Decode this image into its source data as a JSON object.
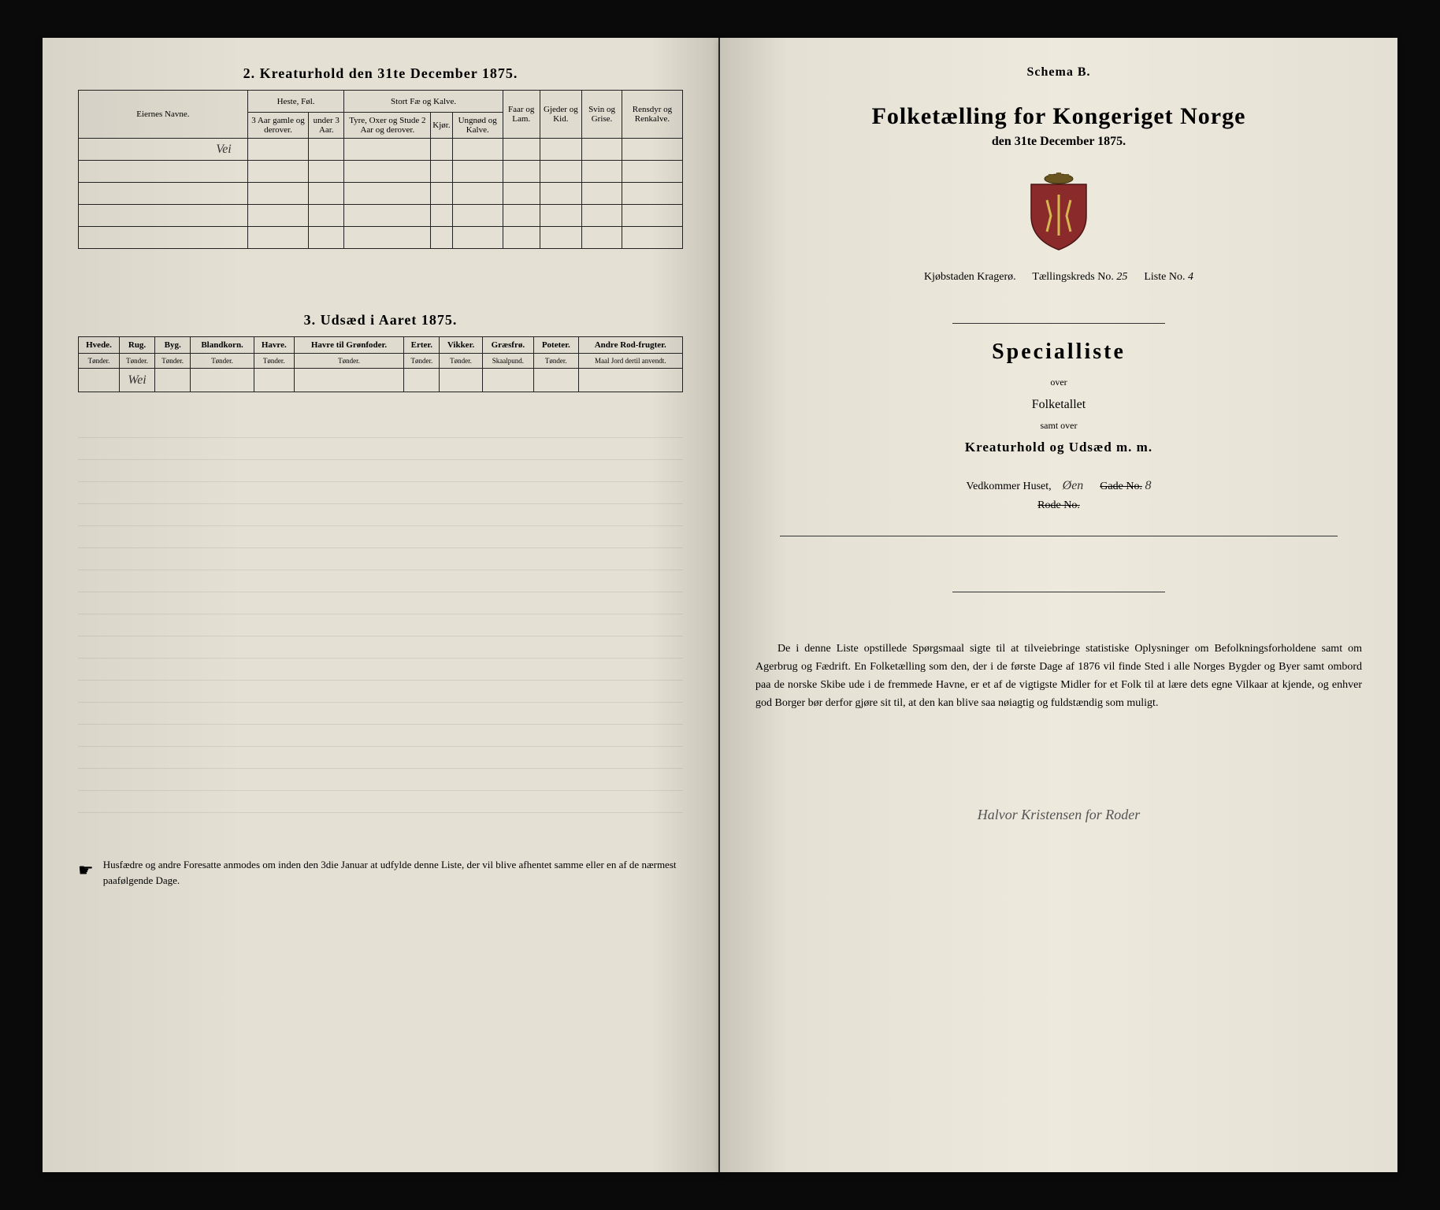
{
  "left": {
    "section2_title": "2. Kreaturhold den 31te December 1875.",
    "table1": {
      "row_header": "Eiernes Navne.",
      "group_heste": "Heste, Føl.",
      "group_storfe": "Stort Fæ og Kalve.",
      "col_faar": "Faar og Lam.",
      "col_gjeder": "Gjeder og Kid.",
      "col_svin": "Svin og Grise.",
      "col_rensdyr": "Rensdyr og Renkalve.",
      "sub_heste_1": "3 Aar gamle og derover.",
      "sub_heste_2": "under 3 Aar.",
      "sub_stor_1": "Tyre, Oxer og Stude 2 Aar og derover.",
      "sub_stor_2": "Kjør.",
      "sub_stor_3": "Ungnød og Kalve.",
      "handwritten_row1": "Vei"
    },
    "section3_title": "3. Udsæd i Aaret 1875.",
    "table2": {
      "cols": [
        {
          "h": "Hvede.",
          "u": "Tønder."
        },
        {
          "h": "Rug.",
          "u": "Tønder."
        },
        {
          "h": "Byg.",
          "u": "Tønder."
        },
        {
          "h": "Blandkorn.",
          "u": "Tønder."
        },
        {
          "h": "Havre.",
          "u": "Tønder."
        },
        {
          "h": "Havre til Grønfoder.",
          "u": "Tønder."
        },
        {
          "h": "Erter.",
          "u": "Tønder."
        },
        {
          "h": "Vikker.",
          "u": "Tønder."
        },
        {
          "h": "Græsfrø.",
          "u": "Skaalpund."
        },
        {
          "h": "Poteter.",
          "u": "Tønder."
        },
        {
          "h": "Andre Rod-frugter.",
          "u": "Maal Jord dertil anvendt."
        }
      ],
      "handwritten_row1": "Wei"
    },
    "footnote": "Husfædre og andre Foresatte anmodes om inden den 3die Januar at udfylde denne Liste, der vil blive afhentet samme eller en af de nærmest paafølgende Dage."
  },
  "right": {
    "schema": "Schema B.",
    "main_title": "Folketælling for Kongeriget Norge",
    "subtitle": "den 31te December 1875.",
    "loc_prefix": "Kjøbstaden Kragerø.",
    "loc_tk": "Tællingskreds No.",
    "loc_tk_val": "25",
    "loc_liste": "Liste No.",
    "loc_liste_val": "4",
    "special": "Specialliste",
    "over": "over",
    "folketallet": "Folketallet",
    "samt_over": "samt over",
    "kreatur": "Kreaturhold og Udsæd m. m.",
    "vedkommer": "Vedkommer Huset,",
    "vedkommer_hw": "Øen",
    "gade_label": "Gade No.",
    "gade_val": "8",
    "rode": "Rode No.",
    "body": "De i denne Liste opstillede Spørgsmaal sigte til at tilveiebringe statistiske Oplysninger om Befolkningsforholdene samt om Agerbrug og Fædrift. En Folketælling som den, der i de første Dage af 1876 vil finde Sted i alle Norges Bygder og Byer samt ombord paa de norske Skibe ude i de fremmede Havne, er et af de vigtigste Midler for et Folk til at lære dets egne Vilkaar at kjende, og enhver god Borger bør derfor gjøre sit til, at den kan blive saa nøiagtig og fuldstændig som muligt.",
    "signature": "Halvor Kristensen for Roder"
  }
}
